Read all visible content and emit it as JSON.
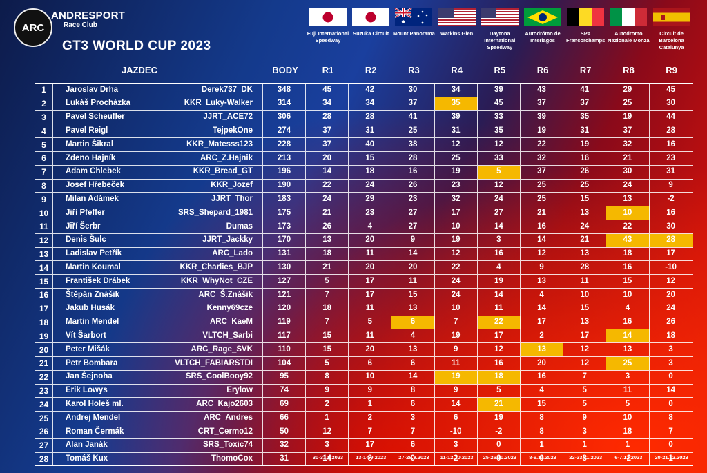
{
  "brand": {
    "logo": "ARC",
    "name": "ANDRESPORT",
    "sub": "Race Club"
  },
  "title": "GT3 WORLD CUP 2023",
  "headers": {
    "driver": "JAZDEC",
    "points": "BODY",
    "rounds": [
      "R1",
      "R2",
      "R3",
      "R4",
      "R5",
      "R6",
      "R7",
      "R8",
      "R9"
    ]
  },
  "tracks": [
    {
      "flag": "japan",
      "name": "Fuji International Speedway",
      "date": "30-31.8.2023"
    },
    {
      "flag": "japan",
      "name": "Suzuka Circuit",
      "date": "13-14.9.2023"
    },
    {
      "flag": "australia",
      "name": "Mount Panorama",
      "date": "27-28.9.2023"
    },
    {
      "flag": "usa",
      "name": "Watkins Glen",
      "date": "11-12.10.2023"
    },
    {
      "flag": "usa",
      "name": "Daytona International Speedway",
      "date": "25-26.10.2023"
    },
    {
      "flag": "brazil",
      "name": "Autodrómo de Interlagos",
      "date": "8-9.11.2023"
    },
    {
      "flag": "belgium",
      "name": "SPA Francorchamps",
      "date": "22-23.11.2023"
    },
    {
      "flag": "italy",
      "name": "Autodromo Nazionale Monza",
      "date": "6-7.12.2023"
    },
    {
      "flag": "spain",
      "name": "Circuit de Barcelona Catalunya",
      "date": "20-21.12.2023"
    }
  ],
  "highlight_color": "#f5b800",
  "rows": [
    {
      "pos": "1",
      "name": "Jaroslav Drha",
      "nick": "Derek737_DK",
      "pts": "348",
      "r": [
        "45",
        "42",
        "30",
        "34",
        "39",
        "43",
        "41",
        "29",
        "45"
      ],
      "hl": []
    },
    {
      "pos": "2",
      "name": "Lukáš Procházka",
      "nick": "KKR_Luky-Walker",
      "pts": "314",
      "r": [
        "34",
        "34",
        "37",
        "35",
        "45",
        "37",
        "37",
        "25",
        "30"
      ],
      "hl": [
        3
      ]
    },
    {
      "pos": "3",
      "name": "Pavel Scheufler",
      "nick": "JJRT_ACE72",
      "pts": "306",
      "r": [
        "28",
        "28",
        "41",
        "39",
        "33",
        "39",
        "35",
        "19",
        "44"
      ],
      "hl": []
    },
    {
      "pos": "4",
      "name": "Pavel Reigl",
      "nick": "TejpekOne",
      "pts": "274",
      "r": [
        "37",
        "31",
        "25",
        "31",
        "35",
        "19",
        "31",
        "37",
        "28"
      ],
      "hl": []
    },
    {
      "pos": "5",
      "name": "Martin Šikral",
      "nick": "KKR_Matesss123",
      "pts": "228",
      "r": [
        "37",
        "40",
        "38",
        "12",
        "12",
        "22",
        "19",
        "32",
        "16"
      ],
      "hl": []
    },
    {
      "pos": "6",
      "name": "Zdeno Hajník",
      "nick": "ARC_Z.Hajnik",
      "pts": "213",
      "r": [
        "20",
        "15",
        "28",
        "25",
        "33",
        "32",
        "16",
        "21",
        "23"
      ],
      "hl": []
    },
    {
      "pos": "7",
      "name": "Adam Chlebek",
      "nick": "KKR_Bread_GT",
      "pts": "196",
      "r": [
        "14",
        "18",
        "16",
        "19",
        "5",
        "37",
        "26",
        "30",
        "31"
      ],
      "hl": [
        4
      ]
    },
    {
      "pos": "8",
      "name": "Josef Hřebeček",
      "nick": "KKR_Jozef",
      "pts": "190",
      "r": [
        "22",
        "24",
        "26",
        "23",
        "12",
        "25",
        "25",
        "24",
        "9"
      ],
      "hl": []
    },
    {
      "pos": "9",
      "name": "Milan Adámek",
      "nick": "JJRT_Thor",
      "pts": "183",
      "r": [
        "24",
        "29",
        "23",
        "32",
        "24",
        "25",
        "15",
        "13",
        "-2"
      ],
      "hl": []
    },
    {
      "pos": "10",
      "name": "Jiří Pfeffer",
      "nick": "SRS_Shepard_1981",
      "pts": "175",
      "r": [
        "21",
        "23",
        "27",
        "17",
        "27",
        "21",
        "13",
        "10",
        "16"
      ],
      "hl": [
        7
      ]
    },
    {
      "pos": "11",
      "name": "Jiří Šerbr",
      "nick": "Dumas",
      "pts": "173",
      "r": [
        "26",
        "4",
        "27",
        "10",
        "14",
        "16",
        "24",
        "22",
        "30"
      ],
      "hl": []
    },
    {
      "pos": "12",
      "name": "Denis Šulc",
      "nick": "JJRT_Jackky",
      "pts": "170",
      "r": [
        "13",
        "20",
        "9",
        "19",
        "3",
        "14",
        "21",
        "43",
        "28"
      ],
      "hl": [
        7,
        8
      ]
    },
    {
      "pos": "13",
      "name": "Ladislav Petřík",
      "nick": "ARC_Lado",
      "pts": "131",
      "r": [
        "18",
        "11",
        "14",
        "12",
        "16",
        "12",
        "13",
        "18",
        "17"
      ],
      "hl": []
    },
    {
      "pos": "14",
      "name": "Martin Koumal",
      "nick": "KKR_Charlies_BJP",
      "pts": "130",
      "r": [
        "21",
        "20",
        "20",
        "22",
        "4",
        "9",
        "28",
        "16",
        "-10"
      ],
      "hl": []
    },
    {
      "pos": "15",
      "name": "František Drábek",
      "nick": "KKR_WhyNot_CZE",
      "pts": "127",
      "r": [
        "5",
        "17",
        "11",
        "24",
        "19",
        "13",
        "11",
        "15",
        "12"
      ],
      "hl": []
    },
    {
      "pos": "16",
      "name": "Štěpán Znášik",
      "nick": "ARC_Š.Znášik",
      "pts": "121",
      "r": [
        "7",
        "17",
        "15",
        "24",
        "14",
        "4",
        "10",
        "10",
        "20"
      ],
      "hl": []
    },
    {
      "pos": "17",
      "name": "Jakub Husák",
      "nick": "Kenny69cze",
      "pts": "120",
      "r": [
        "18",
        "11",
        "13",
        "10",
        "11",
        "14",
        "15",
        "4",
        "24"
      ],
      "hl": []
    },
    {
      "pos": "18",
      "name": "Martin Mendel",
      "nick": "ARC_KaeM",
      "pts": "119",
      "r": [
        "7",
        "5",
        "6",
        "7",
        "22",
        "17",
        "13",
        "16",
        "26"
      ],
      "hl": [
        2,
        4
      ]
    },
    {
      "pos": "19",
      "name": "Vít Šarbort",
      "nick": "VLTCH_Sarbi",
      "pts": "117",
      "r": [
        "15",
        "11",
        "4",
        "19",
        "17",
        "2",
        "17",
        "14",
        "18"
      ],
      "hl": [
        7
      ]
    },
    {
      "pos": "20",
      "name": "Peter Mišák",
      "nick": "ARC_Rage_SVK",
      "pts": "110",
      "r": [
        "15",
        "20",
        "13",
        "9",
        "12",
        "13",
        "12",
        "13",
        "3"
      ],
      "hl": [
        5
      ]
    },
    {
      "pos": "21",
      "name": "Petr Bombara",
      "nick": "VLTCH_FABIARSTDI",
      "pts": "104",
      "r": [
        "5",
        "6",
        "6",
        "11",
        "16",
        "20",
        "12",
        "25",
        "3"
      ],
      "hl": [
        7
      ]
    },
    {
      "pos": "22",
      "name": "Jan Šejnoha",
      "nick": "SRS_CoolBooy92",
      "pts": "95",
      "r": [
        "8",
        "10",
        "14",
        "19",
        "18",
        "16",
        "7",
        "3",
        "0"
      ],
      "hl": [
        3,
        4
      ]
    },
    {
      "pos": "23",
      "name": "Erik Lowys",
      "nick": "Erylow",
      "pts": "74",
      "r": [
        "9",
        "9",
        "8",
        "9",
        "5",
        "4",
        "5",
        "11",
        "14"
      ],
      "hl": []
    },
    {
      "pos": "24",
      "name": "Karol Holeš ml.",
      "nick": "ARC_Kajo2603",
      "pts": "69",
      "r": [
        "2",
        "1",
        "6",
        "14",
        "21",
        "15",
        "5",
        "5",
        "0"
      ],
      "hl": [
        4
      ]
    },
    {
      "pos": "25",
      "name": "Andrej Mendel",
      "nick": "ARC_Andres",
      "pts": "66",
      "r": [
        "1",
        "2",
        "3",
        "6",
        "19",
        "8",
        "9",
        "10",
        "8"
      ],
      "hl": []
    },
    {
      "pos": "26",
      "name": "Roman Čermák",
      "nick": "CRT_Cermo12",
      "pts": "50",
      "r": [
        "12",
        "7",
        "7",
        "-10",
        "-2",
        "8",
        "3",
        "18",
        "7"
      ],
      "hl": []
    },
    {
      "pos": "27",
      "name": "Alan Janák",
      "nick": "SRS_Toxic74",
      "pts": "32",
      "r": [
        "3",
        "17",
        "6",
        "3",
        "0",
        "1",
        "1",
        "1",
        "0"
      ],
      "hl": []
    },
    {
      "pos": "28",
      "name": "Tomáš Kux",
      "nick": "ThomoCox",
      "pts": "31",
      "r": [
        "14",
        "8",
        "0",
        "2",
        "0",
        "0",
        "8",
        "-2",
        "1"
      ],
      "hl": []
    }
  ]
}
